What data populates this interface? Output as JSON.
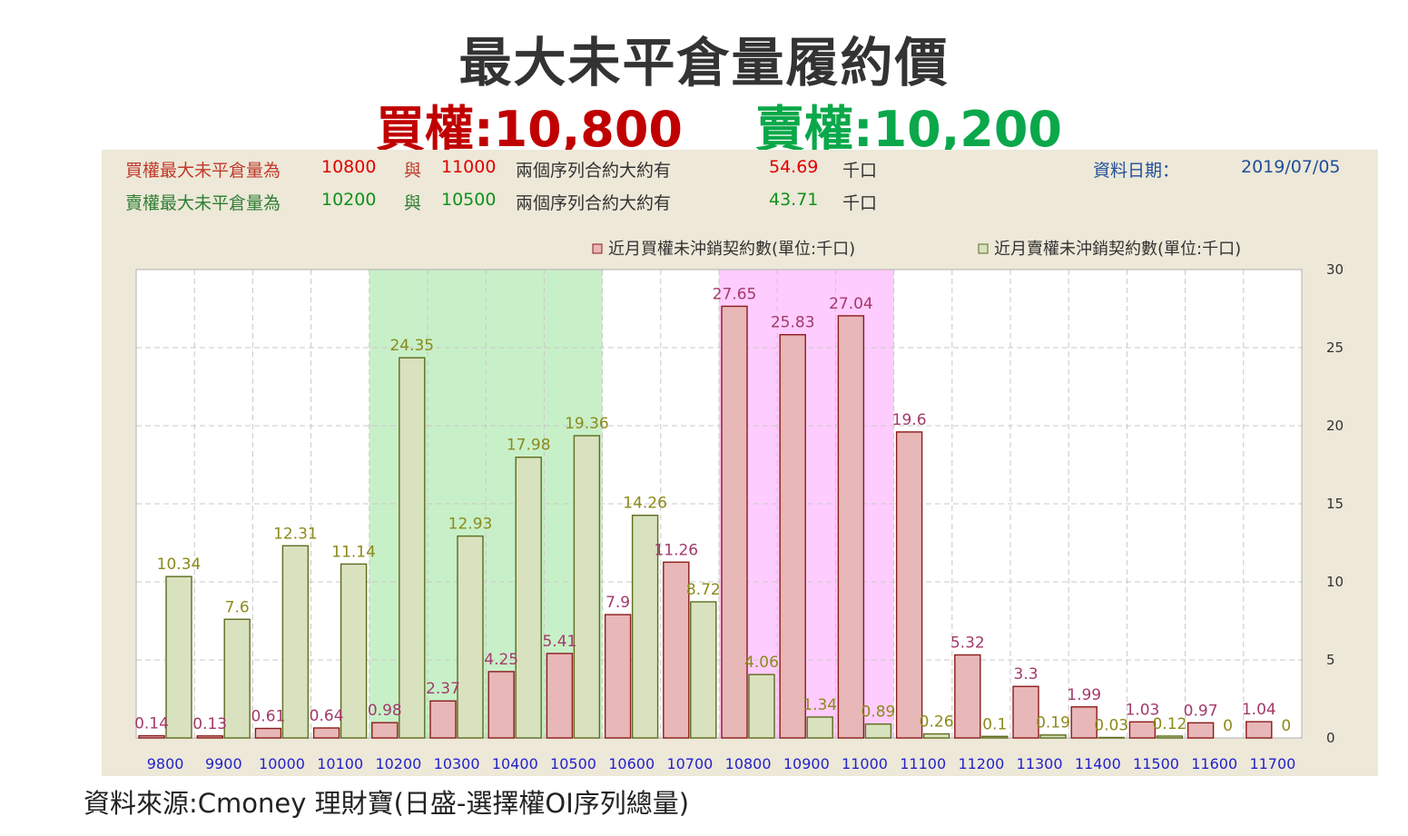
{
  "header": {
    "title": "最大未平倉量履約價",
    "call_label": "買權:10,800",
    "put_label": "賣權:10,200"
  },
  "info": {
    "call_prefix": "買權最大未平倉量為",
    "call_strike1": "10800",
    "call_and": "與",
    "call_strike2": "11000",
    "call_mid": "兩個序列合約大約有",
    "call_amount": "54.69",
    "call_unit": "千口",
    "put_prefix": "賣權最大未平倉量為",
    "put_strike1": "10200",
    "put_and": "與",
    "put_strike2": "10500",
    "put_mid": "兩個序列合約大約有",
    "put_amount": "43.71",
    "put_unit": "千口",
    "date_label": "資料日期：",
    "date_value": "2019/07/05"
  },
  "source": "資料來源:Cmoney 理財寶(日盛-選擇權OI序列總量)",
  "colors": {
    "call_fill": "#e8b7b7",
    "call_label": "#a33a6a",
    "put_fill": "#d9e2bf",
    "put_label": "#8c8a1a",
    "call_band": "#ffccff",
    "put_band": "#c8f0c8",
    "axis_label": "#2222cc"
  },
  "chart_data": {
    "type": "bar",
    "categories": [
      "9800",
      "9900",
      "10000",
      "10100",
      "10200",
      "10300",
      "10400",
      "10500",
      "10600",
      "10700",
      "10800",
      "10900",
      "11000",
      "11100",
      "11200",
      "11300",
      "11400",
      "11500",
      "11600",
      "11700"
    ],
    "series": [
      {
        "name": "近月買權未沖銷契約數(單位:千口)",
        "values": [
          0.14,
          0.13,
          0.61,
          0.64,
          0.98,
          2.37,
          4.25,
          5.41,
          7.9,
          11.26,
          27.65,
          25.83,
          27.04,
          19.6,
          5.32,
          3.3,
          1.99,
          1.03,
          0.97,
          1.04
        ]
      },
      {
        "name": "近月賣權未沖銷契約數(單位:千口)",
        "values": [
          10.34,
          7.6,
          12.31,
          11.14,
          24.35,
          12.93,
          17.98,
          19.36,
          14.26,
          8.72,
          4.06,
          1.34,
          0.89,
          0.26,
          0.1,
          0.19,
          0.03,
          0.12,
          0,
          0
        ]
      }
    ],
    "data_labels": {
      "call": [
        "0.14",
        "0.13",
        "0.61",
        "0.64",
        "0.98",
        "2.37",
        "4.25",
        "5.41",
        "7.9",
        "11.26",
        "27.65",
        "25.83",
        "27.04",
        "19.6",
        "5.32",
        "3.3",
        "1.99",
        "1.03",
        "0.97",
        "1.04"
      ],
      "put": [
        "10.34",
        "7.6",
        "12.31",
        "11.14",
        "24.35",
        "12.93",
        "17.98",
        "19.36",
        "14.26",
        "8.72",
        "4.06",
        "1.34",
        "0.89",
        "0.26",
        "0.1",
        "0.19",
        "0.03",
        "0.12",
        "0",
        "0"
      ]
    },
    "y_ticks": [
      "0",
      "5",
      "10",
      "15",
      "20",
      "25",
      "30"
    ],
    "ylim": [
      0,
      30
    ],
    "highlight": {
      "put_range": [
        "10200",
        "10500"
      ],
      "call_range": [
        "10800",
        "11000"
      ]
    },
    "legend_position": "top-right",
    "grid": true
  }
}
